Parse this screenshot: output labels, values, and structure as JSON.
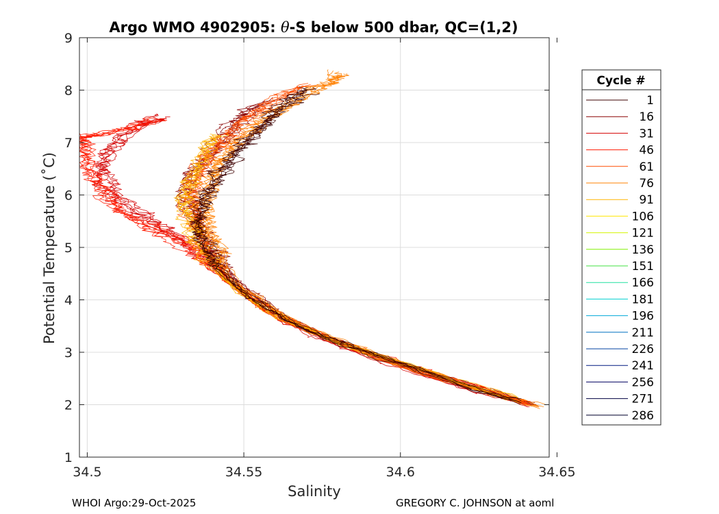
{
  "chart_data": {
    "type": "line",
    "title_prefix": "Argo WMO 4902905: ",
    "title_theta": "θ",
    "title_suffix": "-S below 500 dbar,  QC=(1,2)",
    "xlabel": "Salinity",
    "ylabel": "Potential Temperature (˚C)",
    "xlim": [
      34.4975,
      34.6475
    ],
    "ylim": [
      1,
      9
    ],
    "xticks": [
      34.5,
      34.55,
      34.6,
      34.65
    ],
    "xtick_labels": [
      "34.5",
      "34.55",
      "34.6",
      "34.65"
    ],
    "yticks": [
      1,
      2,
      3,
      4,
      5,
      6,
      7,
      8,
      9
    ],
    "ytick_labels": [
      "1",
      "2",
      "3",
      "4",
      "5",
      "6",
      "7",
      "8",
      "9"
    ],
    "grid": true,
    "legend_title": "Cycle #",
    "legend_position": "right",
    "series": [
      {
        "name": "1",
        "color": "#3d0000"
      },
      {
        "name": "16",
        "color": "#8a0000"
      },
      {
        "name": "31",
        "color": "#d40000"
      },
      {
        "name": "46",
        "color": "#ff1a00"
      },
      {
        "name": "61",
        "color": "#ff4d00"
      },
      {
        "name": "76",
        "color": "#ff8000"
      },
      {
        "name": "91",
        "color": "#ffb300"
      },
      {
        "name": "106",
        "color": "#ffe600"
      },
      {
        "name": "121",
        "color": "#d4f500"
      },
      {
        "name": "136",
        "color": "#80f000"
      },
      {
        "name": "151",
        "color": "#40e040"
      },
      {
        "name": "166",
        "color": "#20e0a0"
      },
      {
        "name": "181",
        "color": "#00d0d0"
      },
      {
        "name": "196",
        "color": "#00a8d8"
      },
      {
        "name": "211",
        "color": "#0070c0"
      },
      {
        "name": "226",
        "color": "#0040a0"
      },
      {
        "name": "241",
        "color": "#001a80"
      },
      {
        "name": "256",
        "color": "#000060"
      },
      {
        "name": "271",
        "color": "#000040"
      },
      {
        "name": "286",
        "color": "#00002a"
      }
    ],
    "profile_envelope": {
      "salinity_at_2C": 34.642,
      "salinity_at_3C": 34.588,
      "salinity_at_4C": 34.555,
      "salinity_at_5C": 34.54,
      "salinity_at_6C": 34.528,
      "salinity_at_7C": 34.535,
      "salinity_at_8C": 34.565,
      "salinity_left_lobe_min": 34.497,
      "theta_max": 8.35,
      "theta_min": 1.97
    },
    "profiles": [
      {
        "color": "#8a0000",
        "points": [
          [
            34.643,
            2.0
          ],
          [
            34.628,
            2.25
          ],
          [
            34.612,
            2.55
          ],
          [
            34.598,
            2.8
          ],
          [
            34.586,
            3.05
          ],
          [
            34.575,
            3.3
          ],
          [
            34.567,
            3.55
          ],
          [
            34.56,
            3.8
          ],
          [
            34.554,
            4.05
          ],
          [
            34.548,
            4.3
          ],
          [
            34.544,
            4.6
          ],
          [
            34.541,
            4.9
          ],
          [
            34.538,
            5.2
          ],
          [
            34.535,
            5.5
          ],
          [
            34.533,
            5.8
          ],
          [
            34.532,
            6.1
          ],
          [
            34.534,
            6.4
          ],
          [
            34.537,
            6.7
          ],
          [
            34.541,
            7.0
          ],
          [
            34.546,
            7.3
          ],
          [
            34.551,
            7.55
          ],
          [
            34.557,
            7.8
          ]
        ]
      },
      {
        "color": "#d40000",
        "points": [
          [
            34.64,
            2.0
          ],
          [
            34.624,
            2.28
          ],
          [
            34.608,
            2.58
          ],
          [
            34.594,
            2.85
          ],
          [
            34.582,
            3.1
          ],
          [
            34.572,
            3.35
          ],
          [
            34.563,
            3.6
          ],
          [
            34.556,
            3.85
          ],
          [
            34.55,
            4.1
          ],
          [
            34.545,
            4.35
          ],
          [
            34.541,
            4.6
          ],
          [
            34.537,
            4.85
          ],
          [
            34.532,
            5.1
          ],
          [
            34.525,
            5.35
          ],
          [
            34.517,
            5.6
          ],
          [
            34.51,
            5.9
          ],
          [
            34.506,
            6.2
          ],
          [
            34.504,
            6.5
          ],
          [
            34.506,
            6.8
          ],
          [
            34.512,
            7.1
          ],
          [
            34.518,
            7.35
          ],
          [
            34.525,
            7.5
          ]
        ]
      },
      {
        "color": "#ff1a00",
        "points": [
          [
            34.641,
            2.02
          ],
          [
            34.626,
            2.3
          ],
          [
            34.61,
            2.6
          ],
          [
            34.596,
            2.87
          ],
          [
            34.584,
            3.12
          ],
          [
            34.573,
            3.37
          ],
          [
            34.564,
            3.62
          ],
          [
            34.557,
            3.87
          ],
          [
            34.55,
            4.12
          ],
          [
            34.545,
            4.38
          ],
          [
            34.54,
            4.65
          ],
          [
            34.535,
            4.9
          ],
          [
            34.528,
            5.15
          ],
          [
            34.52,
            5.4
          ],
          [
            34.512,
            5.7
          ],
          [
            34.506,
            6.0
          ],
          [
            34.502,
            6.3
          ],
          [
            34.5,
            6.6
          ],
          [
            34.501,
            6.9
          ],
          [
            34.497,
            7.1
          ],
          [
            34.505,
            7.15
          ],
          [
            34.514,
            7.3
          ],
          [
            34.522,
            7.45
          ]
        ]
      },
      {
        "color": "#ff4d00",
        "points": [
          [
            34.639,
            2.05
          ],
          [
            34.623,
            2.32
          ],
          [
            34.607,
            2.62
          ],
          [
            34.593,
            2.9
          ],
          [
            34.581,
            3.15
          ],
          [
            34.571,
            3.4
          ],
          [
            34.562,
            3.65
          ],
          [
            34.555,
            3.9
          ],
          [
            34.549,
            4.15
          ],
          [
            34.544,
            4.4
          ],
          [
            34.54,
            4.7
          ],
          [
            34.537,
            5.0
          ],
          [
            34.535,
            5.3
          ],
          [
            34.533,
            5.6
          ],
          [
            34.532,
            5.9
          ],
          [
            34.533,
            6.2
          ],
          [
            34.536,
            6.5
          ],
          [
            34.54,
            6.8
          ],
          [
            34.545,
            7.1
          ],
          [
            34.551,
            7.4
          ],
          [
            34.557,
            7.65
          ],
          [
            34.563,
            7.9
          ],
          [
            34.569,
            8.1
          ]
        ]
      },
      {
        "color": "#ff8000",
        "points": [
          [
            34.645,
            1.97
          ],
          [
            34.63,
            2.22
          ],
          [
            34.614,
            2.5
          ],
          [
            34.6,
            2.77
          ],
          [
            34.588,
            3.02
          ],
          [
            34.577,
            3.27
          ],
          [
            34.568,
            3.52
          ],
          [
            34.561,
            3.77
          ],
          [
            34.555,
            4.02
          ],
          [
            34.549,
            4.28
          ],
          [
            34.545,
            4.55
          ],
          [
            34.542,
            4.85
          ],
          [
            34.54,
            5.15
          ],
          [
            34.538,
            5.45
          ],
          [
            34.537,
            5.75
          ],
          [
            34.538,
            6.05
          ],
          [
            34.54,
            6.35
          ],
          [
            34.543,
            6.65
          ],
          [
            34.547,
            6.95
          ],
          [
            34.552,
            7.25
          ],
          [
            34.558,
            7.5
          ],
          [
            34.565,
            7.75
          ],
          [
            34.572,
            8.0
          ],
          [
            34.578,
            8.2
          ],
          [
            34.581,
            8.35
          ]
        ]
      },
      {
        "color": "#ffb300",
        "points": [
          [
            34.637,
            2.1
          ],
          [
            34.621,
            2.38
          ],
          [
            34.606,
            2.66
          ],
          [
            34.592,
            2.93
          ],
          [
            34.58,
            3.18
          ],
          [
            34.57,
            3.43
          ],
          [
            34.561,
            3.68
          ],
          [
            34.554,
            3.93
          ],
          [
            34.548,
            4.18
          ],
          [
            34.543,
            4.45
          ],
          [
            34.539,
            4.75
          ],
          [
            34.536,
            5.05
          ],
          [
            34.534,
            5.35
          ],
          [
            34.532,
            5.65
          ],
          [
            34.531,
            5.95
          ],
          [
            34.532,
            6.25
          ],
          [
            34.535,
            6.55
          ],
          [
            34.538,
            6.85
          ],
          [
            34.542,
            7.15
          ]
        ]
      },
      {
        "color": "#3d0000",
        "points": [
          [
            34.638,
            2.06
          ],
          [
            34.622,
            2.34
          ],
          [
            34.606,
            2.64
          ],
          [
            34.592,
            2.92
          ],
          [
            34.581,
            3.17
          ],
          [
            34.571,
            3.42
          ],
          [
            34.563,
            3.66
          ],
          [
            34.557,
            3.88
          ],
          [
            34.552,
            4.05
          ],
          [
            34.547,
            4.3
          ],
          [
            34.543,
            4.6
          ],
          [
            34.54,
            4.9
          ],
          [
            34.538,
            5.2
          ],
          [
            34.537,
            5.5
          ],
          [
            34.537,
            5.8
          ],
          [
            34.539,
            6.1
          ],
          [
            34.542,
            6.4
          ],
          [
            34.546,
            6.7
          ],
          [
            34.55,
            7.0
          ],
          [
            34.555,
            7.3
          ],
          [
            34.56,
            7.55
          ],
          [
            34.566,
            7.8
          ],
          [
            34.571,
            8.0
          ]
        ]
      }
    ]
  },
  "footer": {
    "left": "WHOI Argo:29-Oct-2025",
    "right": "GREGORY C. JOHNSON at aoml"
  }
}
